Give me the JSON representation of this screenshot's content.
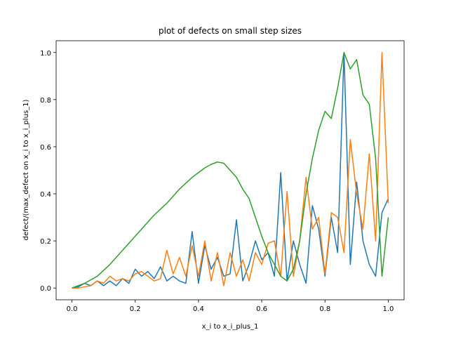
{
  "chart_data": {
    "type": "line",
    "title": "plot of defects on small step sizes",
    "x_label": "x_i to x_i_plus_1",
    "y_label": "defect/(max_defect on x_i to x_i_plus_1)",
    "x": [
      0,
      0.02,
      0.04,
      0.06,
      0.08,
      0.1,
      0.12,
      0.14,
      0.16,
      0.18,
      0.2,
      0.22,
      0.24,
      0.26,
      0.28,
      0.3,
      0.32,
      0.34,
      0.36,
      0.38,
      0.4,
      0.42,
      0.44,
      0.46,
      0.48,
      0.5,
      0.52,
      0.54,
      0.56,
      0.58,
      0.6,
      0.62,
      0.64,
      0.66,
      0.68,
      0.7,
      0.72,
      0.74,
      0.76,
      0.78,
      0.8,
      0.82,
      0.84,
      0.86,
      0.88,
      0.9,
      0.92,
      0.94,
      0.96,
      0.98,
      1.0
    ],
    "series": [
      {
        "color": "#1f77b4",
        "values": [
          0,
          0.005,
          0.02,
          0.01,
          0.03,
          0.01,
          0.03,
          0.01,
          0.04,
          0.02,
          0.08,
          0.05,
          0.07,
          0.04,
          0.09,
          0.03,
          0.05,
          0.03,
          0.02,
          0.24,
          0.02,
          0.18,
          0.08,
          0.13,
          0.05,
          0.06,
          0.29,
          0.03,
          0.1,
          0.2,
          0.12,
          0.15,
          0.05,
          0.49,
          0.03,
          0.2,
          0.1,
          0.02,
          0.35,
          0.25,
          0.05,
          0.3,
          0.15,
          1.0,
          0.1,
          0.45,
          0.2,
          0.1,
          0.05,
          0.32,
          0.38
        ]
      },
      {
        "color": "#ff7f0e",
        "values": [
          0,
          0,
          0.005,
          0.01,
          0.03,
          0.02,
          0.05,
          0.03,
          0.04,
          0.03,
          0.06,
          0.07,
          0.05,
          0.03,
          0.04,
          0.16,
          0.06,
          0.13,
          0.05,
          0.18,
          0.05,
          0.2,
          0.03,
          0.15,
          0.01,
          0.15,
          0.05,
          0.12,
          0.03,
          0.15,
          0.1,
          0.19,
          0.2,
          0.05,
          0.41,
          0.05,
          0.2,
          0.47,
          0.25,
          0.3,
          0.06,
          0.32,
          0.3,
          0.15,
          0.63,
          0.4,
          0.25,
          0.57,
          0.2,
          1.0,
          0.36
        ]
      },
      {
        "color": "#2ca02c",
        "values": [
          0,
          0.01,
          0.02,
          0.035,
          0.05,
          0.075,
          0.1,
          0.13,
          0.16,
          0.19,
          0.22,
          0.25,
          0.28,
          0.31,
          0.335,
          0.36,
          0.39,
          0.42,
          0.445,
          0.47,
          0.49,
          0.51,
          0.525,
          0.535,
          0.53,
          0.5,
          0.47,
          0.42,
          0.38,
          0.3,
          0.22,
          0.15,
          0.1,
          0.05,
          0.03,
          0.08,
          0.2,
          0.4,
          0.55,
          0.67,
          0.75,
          0.72,
          0.85,
          1.0,
          0.93,
          0.97,
          0.82,
          0.78,
          0.55,
          0.05,
          0.3
        ]
      }
    ],
    "xlim": [
      -0.05,
      1.05
    ],
    "ylim": [
      -0.05,
      1.05
    ],
    "xticks": [
      {
        "value": 0,
        "label": "0.0"
      },
      {
        "value": 0.2,
        "label": "0.2"
      },
      {
        "value": 0.4,
        "label": "0.4"
      },
      {
        "value": 0.6,
        "label": "0.6"
      },
      {
        "value": 0.8,
        "label": "0.8"
      },
      {
        "value": 1,
        "label": "1.0"
      }
    ],
    "yticks": [
      {
        "value": 0,
        "label": "0.0"
      },
      {
        "value": 0.2,
        "label": "0.2"
      },
      {
        "value": 0.4,
        "label": "0.4"
      },
      {
        "value": 0.6,
        "label": "0.6"
      },
      {
        "value": 0.8,
        "label": "0.8"
      },
      {
        "value": 1,
        "label": "1.0"
      }
    ]
  }
}
